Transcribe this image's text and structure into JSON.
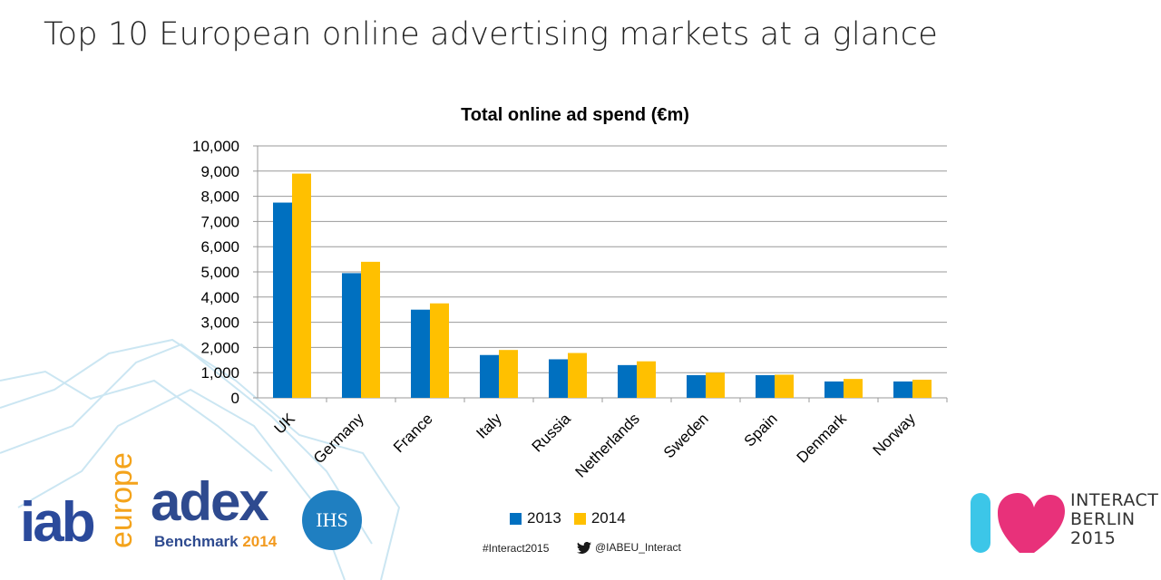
{
  "slide": {
    "title": "Top 10 European online advertising markets at a glance",
    "hashtag": "#Interact2015",
    "twitter_handle": "@IABEU_Interact"
  },
  "logos": {
    "iab_main": "iab",
    "iab_sub": "europe",
    "adex_main": "adex",
    "adex_sub": "Benchmark",
    "adex_year": "2014",
    "ihs": "IHS",
    "interact_lines": [
      "INTERACT",
      "BERLIN",
      "2015"
    ]
  },
  "colors": {
    "series_2013": "#0070c0",
    "series_2014": "#ffc000",
    "grid": "#999999",
    "text": "#000000"
  },
  "chart_data": {
    "type": "bar",
    "title": "Total online ad spend (€m)",
    "xlabel": "",
    "ylabel": "",
    "categories": [
      "UK",
      "Germany",
      "France",
      "Italy",
      "Russia",
      "Netherlands",
      "Sweden",
      "Spain",
      "Denmark",
      "Norway"
    ],
    "series": [
      {
        "name": "2013",
        "values": [
          7750,
          4950,
          3500,
          1700,
          1530,
          1300,
          900,
          900,
          650,
          650
        ]
      },
      {
        "name": "2014",
        "values": [
          8900,
          5400,
          3750,
          1900,
          1780,
          1450,
          1000,
          920,
          750,
          720
        ]
      }
    ],
    "ylim": [
      0,
      10000
    ],
    "yticks": [
      "0",
      "1,000",
      "2,000",
      "3,000",
      "4,000",
      "5,000",
      "6,000",
      "7,000",
      "8,000",
      "9,000",
      "10,000"
    ],
    "grid": true,
    "legend_position": "bottom"
  }
}
